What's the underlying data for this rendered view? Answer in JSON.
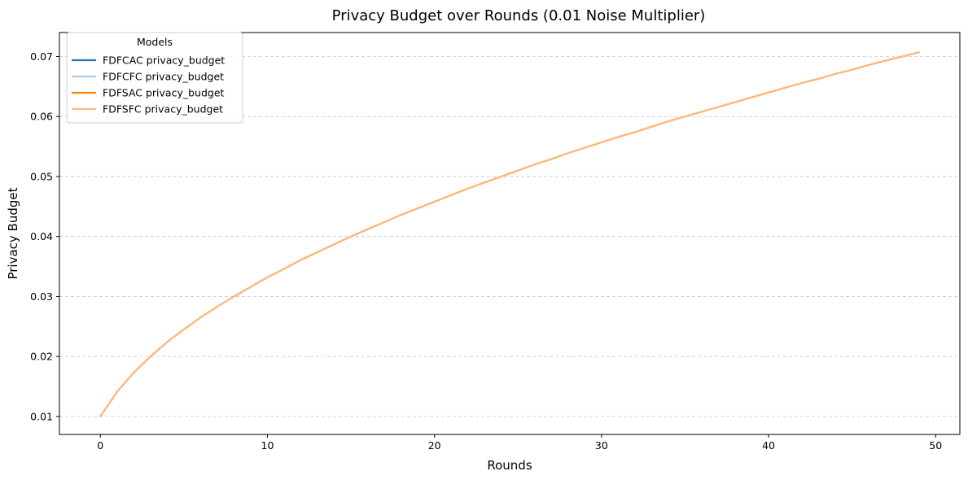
{
  "chart_data": {
    "type": "line",
    "title": "Privacy Budget over Rounds (0.01 Noise Multiplier)",
    "xlabel": "Rounds",
    "ylabel": "Privacy Budget",
    "xlim": [
      -2.45,
      51.45
    ],
    "ylim": [
      0.007,
      0.074
    ],
    "x_ticks": [
      0,
      10,
      20,
      30,
      40,
      50
    ],
    "y_ticks": [
      0.01,
      0.02,
      0.03,
      0.04,
      0.05,
      0.06,
      0.07
    ],
    "y_tick_labels": [
      "0.01",
      "0.02",
      "0.03",
      "0.04",
      "0.05",
      "0.06",
      "0.07"
    ],
    "grid": "y-dashed",
    "legend": {
      "title": "Models",
      "placement": "top-left"
    },
    "x": [
      0,
      1,
      2,
      3,
      4,
      5,
      6,
      7,
      8,
      9,
      10,
      11,
      12,
      13,
      14,
      15,
      16,
      17,
      18,
      19,
      20,
      21,
      22,
      23,
      24,
      25,
      26,
      27,
      28,
      29,
      30,
      31,
      32,
      33,
      34,
      35,
      36,
      37,
      38,
      39,
      40,
      41,
      42,
      43,
      44,
      45,
      46,
      47,
      48,
      49
    ],
    "series": [
      {
        "name": "FDFCAC privacy_budget",
        "color": "#1f77b4",
        "values": [
          0.01,
          0.0141,
          0.0173,
          0.02,
          0.0224,
          0.0245,
          0.0265,
          0.0283,
          0.03,
          0.0316,
          0.0332,
          0.0346,
          0.0361,
          0.0374,
          0.0387,
          0.04,
          0.0412,
          0.0424,
          0.0436,
          0.0447,
          0.0458,
          0.0469,
          0.048,
          0.049,
          0.05,
          0.051,
          0.052,
          0.0529,
          0.0539,
          0.0548,
          0.0557,
          0.0566,
          0.0574,
          0.0583,
          0.0592,
          0.06,
          0.0608,
          0.0616,
          0.0624,
          0.0632,
          0.064,
          0.0648,
          0.0656,
          0.0663,
          0.0671,
          0.0678,
          0.0686,
          0.0693,
          0.07,
          0.0707
        ]
      },
      {
        "name": "FDFCFC privacy_budget",
        "color": "#aec7e8",
        "values": [
          0.01,
          0.0141,
          0.0173,
          0.02,
          0.0224,
          0.0245,
          0.0265,
          0.0283,
          0.03,
          0.0316,
          0.0332,
          0.0346,
          0.0361,
          0.0374,
          0.0387,
          0.04,
          0.0412,
          0.0424,
          0.0436,
          0.0447,
          0.0458,
          0.0469,
          0.048,
          0.049,
          0.05,
          0.051,
          0.052,
          0.0529,
          0.0539,
          0.0548,
          0.0557,
          0.0566,
          0.0574,
          0.0583,
          0.0592,
          0.06,
          0.0608,
          0.0616,
          0.0624,
          0.0632,
          0.064,
          0.0648,
          0.0656,
          0.0663,
          0.0671,
          0.0678,
          0.0686,
          0.0693,
          0.07,
          0.0707
        ]
      },
      {
        "name": "FDFSAC privacy_budget",
        "color": "#ff7f0e",
        "values": [
          0.01,
          0.0141,
          0.0173,
          0.02,
          0.0224,
          0.0245,
          0.0265,
          0.0283,
          0.03,
          0.0316,
          0.0332,
          0.0346,
          0.0361,
          0.0374,
          0.0387,
          0.04,
          0.0412,
          0.0424,
          0.0436,
          0.0447,
          0.0458,
          0.0469,
          0.048,
          0.049,
          0.05,
          0.051,
          0.052,
          0.0529,
          0.0539,
          0.0548,
          0.0557,
          0.0566,
          0.0574,
          0.0583,
          0.0592,
          0.06,
          0.0608,
          0.0616,
          0.0624,
          0.0632,
          0.064,
          0.0648,
          0.0656,
          0.0663,
          0.0671,
          0.0678,
          0.0686,
          0.0693,
          0.07,
          0.0707
        ]
      },
      {
        "name": "FDFSFC privacy_budget",
        "color": "#ffbb78",
        "values": [
          0.01,
          0.0141,
          0.0173,
          0.02,
          0.0224,
          0.0245,
          0.0265,
          0.0283,
          0.03,
          0.0316,
          0.0332,
          0.0346,
          0.0361,
          0.0374,
          0.0387,
          0.04,
          0.0412,
          0.0424,
          0.0436,
          0.0447,
          0.0458,
          0.0469,
          0.048,
          0.049,
          0.05,
          0.051,
          0.052,
          0.0529,
          0.0539,
          0.0548,
          0.0557,
          0.0566,
          0.0574,
          0.0583,
          0.0592,
          0.06,
          0.0608,
          0.0616,
          0.0624,
          0.0632,
          0.064,
          0.0648,
          0.0656,
          0.0663,
          0.0671,
          0.0678,
          0.0686,
          0.0693,
          0.07,
          0.0707
        ]
      }
    ]
  }
}
